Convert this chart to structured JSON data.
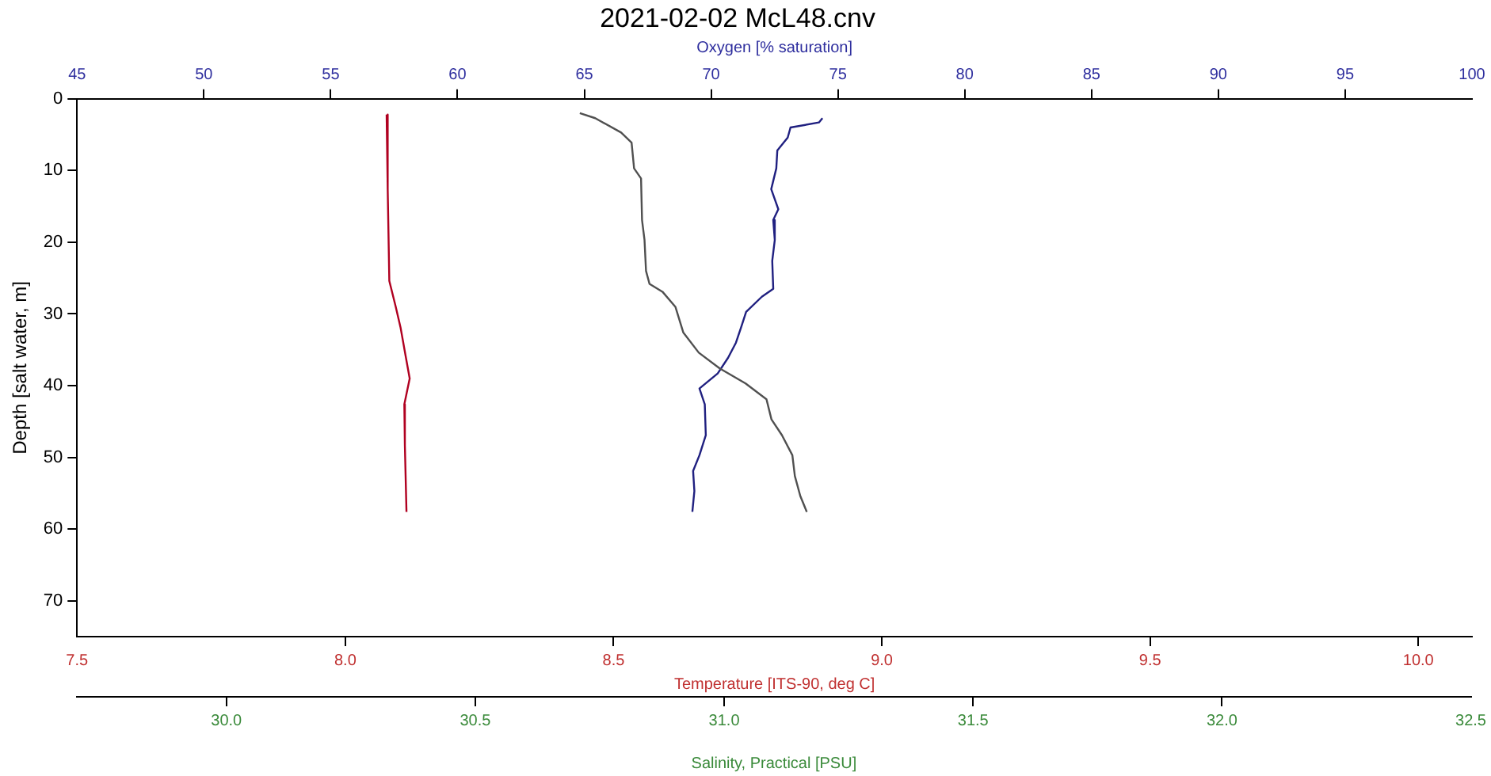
{
  "chart_data": [
    {
      "type": "line",
      "title": "2021-02-02 McL48.cnv",
      "xlabel": "Temperature [ITS-90, deg C]",
      "x2label": "Oxygen [% saturation]",
      "ylabel": "Depth [salt water, m]",
      "xlim": [
        7.5,
        10.1
      ],
      "xticks": [
        {
          "value": 7.5,
          "label": "7.5"
        },
        {
          "value": 8,
          "label": "8.0"
        },
        {
          "value": 8.5,
          "label": "8.5"
        },
        {
          "value": 9,
          "label": "9.0"
        },
        {
          "value": 9.5,
          "label": "9.5"
        },
        {
          "value": 10,
          "label": "10.0"
        }
      ],
      "x2lim": [
        45,
        100
      ],
      "x2ticks": [
        45,
        50,
        55,
        60,
        65,
        70,
        75,
        80,
        85,
        90,
        95,
        100
      ],
      "ylim": [
        75,
        0
      ],
      "yticks": [
        0,
        10,
        20,
        30,
        40,
        50,
        60,
        70
      ],
      "grid": false,
      "legend": false,
      "marker": "none",
      "line_style": "solid",
      "series": [
        {
          "color": "#b00020",
          "x": [
            8.077,
            8.079,
            8.082,
            8.094,
            8.103,
            8.113,
            8.12,
            8.11,
            8.111,
            8.114
          ],
          "values": [
            2.2,
            12.6,
            25.4,
            29.0,
            31.9,
            36.1,
            39.0,
            42.6,
            48.3,
            57.6
          ]
        },
        {
          "axis": "x2",
          "color": "#202080",
          "x": [
            74.39,
            74.25,
            73.13,
            73.02,
            72.61,
            72.57,
            72.37,
            72.65,
            72.45,
            72.51,
            72.41,
            72.45,
            72.0,
            71.38,
            71.18,
            70.98,
            70.67,
            70.26,
            69.54,
            69.75,
            69.79,
            69.54,
            69.29,
            69.34,
            69.26
          ],
          "values": [
            2.7,
            3.3,
            4.0,
            5.4,
            7.2,
            9.7,
            12.6,
            15.4,
            16.9,
            19.7,
            22.6,
            26.5,
            27.6,
            29.7,
            31.9,
            34.0,
            36.1,
            38.3,
            40.4,
            42.6,
            46.9,
            49.7,
            51.9,
            54.7,
            57.6
          ]
        }
      ]
    },
    {
      "type": "line",
      "xlabel": "Salinity, Practical [PSU]",
      "xlim": [
        29.7,
        32.5
      ],
      "xticks": [
        {
          "value": 30,
          "label": "30.0"
        },
        {
          "value": 30.5,
          "label": "30.5"
        },
        {
          "value": 31,
          "label": "31.0"
        },
        {
          "value": 31.5,
          "label": "31.5"
        },
        {
          "value": 32,
          "label": "32.0"
        },
        {
          "value": 32.5,
          "label": "32.5"
        }
      ],
      "ylim": [
        75,
        0
      ],
      "tick_labels": "x",
      "grid": false,
      "legend": false,
      "marker": "none",
      "line_style": "solid",
      "series": [
        {
          "color": "#505050",
          "x": [
            30.71,
            30.741,
            30.793,
            30.814,
            30.819,
            30.833,
            30.835,
            30.84,
            30.843,
            30.85,
            30.876,
            30.902,
            30.918,
            30.949,
            30.991,
            31.043,
            31.085,
            31.095,
            31.116,
            31.137,
            31.142,
            31.153,
            31.166
          ],
          "values": [
            2.0,
            2.7,
            4.7,
            6.1,
            9.7,
            11.1,
            16.9,
            19.7,
            24.0,
            25.8,
            26.9,
            29.0,
            32.6,
            35.4,
            37.6,
            39.7,
            41.9,
            44.7,
            46.9,
            49.7,
            52.6,
            55.4,
            57.6
          ]
        }
      ]
    }
  ]
}
